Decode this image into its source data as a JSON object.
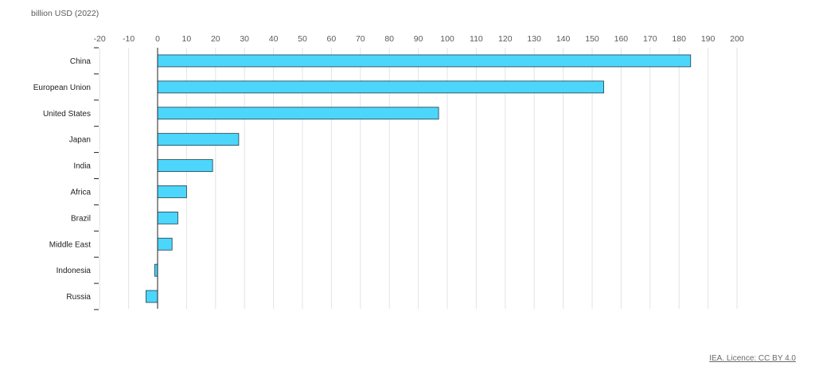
{
  "unit_label": "billion USD (2022)",
  "credit": "IEA. Licence: CC BY 4.0",
  "colors": {
    "bar": "#4cd6fb",
    "bar_stroke": "#1d3f4a",
    "grid": "#e3e3e3",
    "axis": "#222222"
  },
  "chart_data": {
    "type": "bar",
    "orientation": "horizontal",
    "title": "",
    "xlabel": "billion USD (2022)",
    "ylabel": "",
    "xlim": [
      -20,
      200
    ],
    "ticks": [
      -20,
      -10,
      0,
      10,
      20,
      30,
      40,
      50,
      60,
      70,
      80,
      90,
      100,
      110,
      120,
      130,
      140,
      150,
      160,
      170,
      180,
      190,
      200
    ],
    "grid": true,
    "categories": [
      "China",
      "European Union",
      "United States",
      "Japan",
      "India",
      "Africa",
      "Brazil",
      "Middle East",
      "Indonesia",
      "Russia"
    ],
    "values": [
      184,
      154,
      97,
      28,
      19,
      10,
      7,
      5,
      -1,
      -4
    ]
  }
}
